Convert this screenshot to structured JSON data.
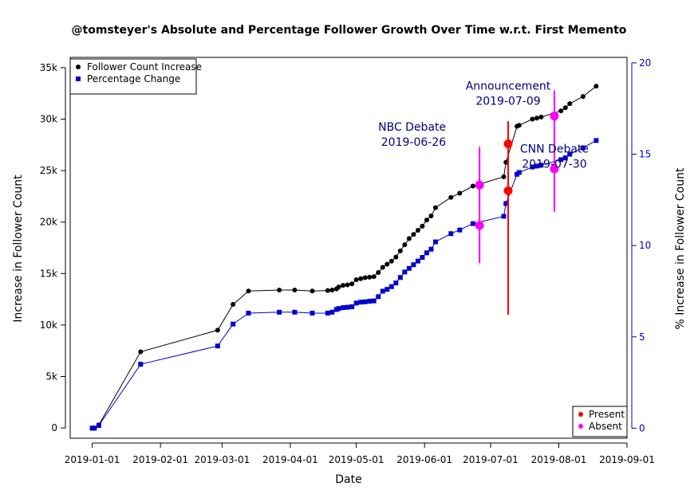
{
  "chart_data": {
    "type": "line",
    "title": "@tomsteyer's Absolute and Percentage Follower Growth Over Time w.r.t. First Memento",
    "xlabel": "Date",
    "ylabel": "Increase in Follower Count",
    "y2label": "% Increase in Follower Count",
    "x_ticks": [
      "2019-01-01",
      "2019-02-01",
      "2019-03-01",
      "2019-04-01",
      "2019-05-01",
      "2019-06-01",
      "2019-07-01",
      "2019-08-01",
      "2019-09-01"
    ],
    "y_ticks": [
      0,
      5000,
      10000,
      15000,
      20000,
      25000,
      30000,
      35000
    ],
    "y_tick_labels": [
      "0",
      "5k",
      "10k",
      "15k",
      "20k",
      "25k",
      "30k",
      "35k"
    ],
    "y2_ticks": [
      0,
      5,
      10,
      15,
      20
    ],
    "y2_tick_labels": [
      "0",
      "5",
      "10",
      "15",
      "20"
    ],
    "xlim": [
      "2018-12-22",
      "2019-09-01"
    ],
    "ylim": [
      -1000,
      36000
    ],
    "y2lim": [
      -0.55,
      20.3
    ],
    "colors": {
      "abs": "#000000",
      "pct": "#0000cc",
      "present": "#ff0000",
      "absent": "#ff00ff",
      "annotation": "#000080"
    },
    "series": [
      {
        "name": "Follower Count Increase",
        "axis": "left",
        "marker": "circle",
        "points": [
          [
            "2019-01-01",
            0
          ],
          [
            "2019-01-02",
            0
          ],
          [
            "2019-01-04",
            300
          ],
          [
            "2019-01-23",
            7400
          ],
          [
            "2019-02-27",
            9500
          ],
          [
            "2019-03-06",
            12000
          ],
          [
            "2019-03-13",
            13300
          ],
          [
            "2019-03-27",
            13400
          ],
          [
            "2019-04-03",
            13400
          ],
          [
            "2019-04-11",
            13300
          ],
          [
            "2019-04-18",
            13350
          ],
          [
            "2019-04-20",
            13400
          ],
          [
            "2019-04-22",
            13500
          ],
          [
            "2019-04-23",
            13700
          ],
          [
            "2019-04-25",
            13850
          ],
          [
            "2019-04-27",
            13900
          ],
          [
            "2019-04-29",
            14000
          ],
          [
            "2019-05-01",
            14400
          ],
          [
            "2019-05-03",
            14500
          ],
          [
            "2019-05-05",
            14600
          ],
          [
            "2019-05-07",
            14650
          ],
          [
            "2019-05-09",
            14700
          ],
          [
            "2019-05-11",
            15100
          ],
          [
            "2019-05-13",
            15600
          ],
          [
            "2019-05-15",
            15900
          ],
          [
            "2019-05-17",
            16200
          ],
          [
            "2019-05-19",
            16600
          ],
          [
            "2019-05-21",
            17200
          ],
          [
            "2019-05-23",
            17800
          ],
          [
            "2019-05-25",
            18400
          ],
          [
            "2019-05-27",
            18800
          ],
          [
            "2019-05-29",
            19200
          ],
          [
            "2019-05-31",
            19600
          ],
          [
            "2019-06-02",
            20200
          ],
          [
            "2019-06-04",
            20600
          ],
          [
            "2019-06-06",
            21400
          ],
          [
            "2019-06-13",
            22400
          ],
          [
            "2019-06-17",
            22800
          ],
          [
            "2019-06-23",
            23500
          ],
          [
            "2019-07-07",
            24400
          ],
          [
            "2019-07-08",
            25800
          ],
          [
            "2019-07-13",
            29300
          ],
          [
            "2019-07-14",
            29400
          ],
          [
            "2019-07-20",
            30000
          ],
          [
            "2019-07-22",
            30100
          ],
          [
            "2019-07-24",
            30200
          ],
          [
            "2019-08-02",
            30800
          ],
          [
            "2019-08-04",
            31100
          ],
          [
            "2019-08-06",
            31500
          ],
          [
            "2019-08-12",
            32200
          ],
          [
            "2019-08-18",
            33200
          ]
        ]
      },
      {
        "name": "Percentage Change",
        "axis": "right",
        "marker": "square",
        "points": [
          [
            "2019-01-01",
            0
          ],
          [
            "2019-01-02",
            0
          ],
          [
            "2019-01-04",
            0.15
          ],
          [
            "2019-01-23",
            3.5
          ],
          [
            "2019-02-27",
            4.5
          ],
          [
            "2019-03-06",
            5.7
          ],
          [
            "2019-03-13",
            6.3
          ],
          [
            "2019-03-27",
            6.35
          ],
          [
            "2019-04-03",
            6.35
          ],
          [
            "2019-04-11",
            6.3
          ],
          [
            "2019-04-18",
            6.3
          ],
          [
            "2019-04-20",
            6.35
          ],
          [
            "2019-04-22",
            6.5
          ],
          [
            "2019-04-23",
            6.55
          ],
          [
            "2019-04-25",
            6.6
          ],
          [
            "2019-04-27",
            6.62
          ],
          [
            "2019-04-29",
            6.65
          ],
          [
            "2019-05-01",
            6.85
          ],
          [
            "2019-05-03",
            6.9
          ],
          [
            "2019-05-05",
            6.92
          ],
          [
            "2019-05-07",
            6.95
          ],
          [
            "2019-05-09",
            6.97
          ],
          [
            "2019-05-11",
            7.2
          ],
          [
            "2019-05-13",
            7.5
          ],
          [
            "2019-05-15",
            7.6
          ],
          [
            "2019-05-17",
            7.75
          ],
          [
            "2019-05-19",
            7.95
          ],
          [
            "2019-05-21",
            8.25
          ],
          [
            "2019-05-23",
            8.55
          ],
          [
            "2019-05-25",
            8.75
          ],
          [
            "2019-05-27",
            8.95
          ],
          [
            "2019-05-29",
            9.15
          ],
          [
            "2019-05-31",
            9.35
          ],
          [
            "2019-06-02",
            9.6
          ],
          [
            "2019-06-04",
            9.8
          ],
          [
            "2019-06-06",
            10.2
          ],
          [
            "2019-06-13",
            10.65
          ],
          [
            "2019-06-17",
            10.85
          ],
          [
            "2019-06-23",
            11.2
          ],
          [
            "2019-07-07",
            11.6
          ],
          [
            "2019-07-08",
            12.3
          ],
          [
            "2019-07-13",
            13.9
          ],
          [
            "2019-07-14",
            14.0
          ],
          [
            "2019-07-20",
            14.3
          ],
          [
            "2019-07-22",
            14.35
          ],
          [
            "2019-07-24",
            14.4
          ],
          [
            "2019-08-02",
            14.7
          ],
          [
            "2019-08-04",
            14.8
          ],
          [
            "2019-08-06",
            15.0
          ],
          [
            "2019-08-12",
            15.35
          ],
          [
            "2019-08-18",
            15.75
          ]
        ]
      }
    ],
    "events": [
      {
        "label": "NBC Debate",
        "date": "2019-06-26",
        "status": "Absent",
        "abs": 23600,
        "pct": 11.1,
        "low_abs": 16000,
        "high_abs": 27300
      },
      {
        "label": "Announcement",
        "date": "2019-07-09",
        "status": "Present",
        "abs": 27600,
        "pct": 13.0,
        "low_abs": 11000,
        "high_abs": 29800
      },
      {
        "label": "CNN Debate",
        "date": "2019-07-30",
        "status": "Absent",
        "abs": 30300,
        "pct": 14.2,
        "low_abs": 21000,
        "high_abs": 32800
      }
    ],
    "legend_main": {
      "position": "top-left",
      "entries": [
        "Follower Count Increase",
        "Percentage Change"
      ]
    },
    "legend_events": {
      "position": "bottom-right",
      "entries": [
        "Present",
        "Absent"
      ]
    },
    "grid": false
  }
}
